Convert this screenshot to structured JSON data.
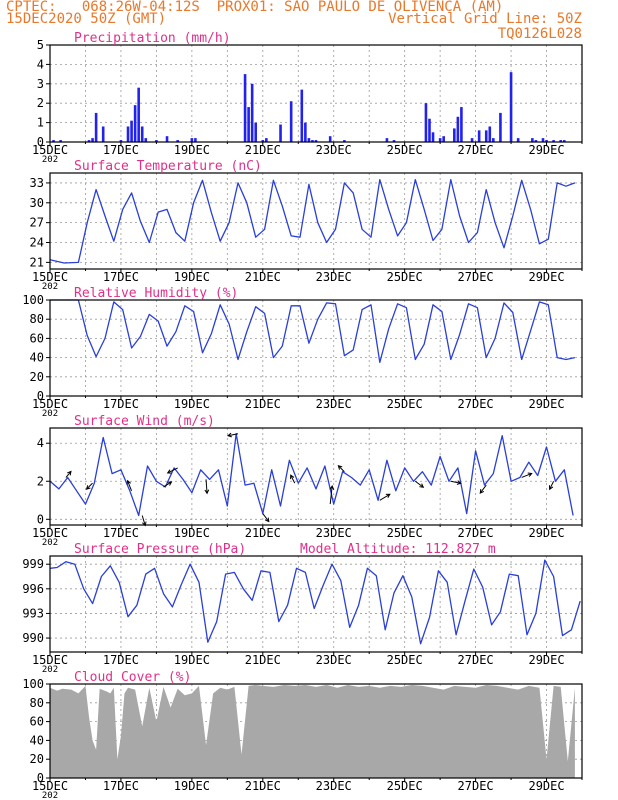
{
  "header": {
    "line1": "CPTEC:   068:26W-04:12S  PROX01: SAO PAULO DE OLIVENCA (AM)",
    "line2": "15DEC2020 50Z (GMT)",
    "right1": "Vertical Grid Line: 50Z",
    "right2": "TQ0126L028"
  },
  "colors": {
    "header": "#e8782a",
    "title": "#e0308a",
    "line": "#2a3fd8",
    "cloud": "#a8a8a8",
    "grid": "#9a9a9a"
  },
  "x_ticks": [
    "15DEC",
    "17DEC",
    "19DEC",
    "21DEC",
    "23DEC",
    "25DEC",
    "27DEC",
    "29DEC"
  ],
  "year_cut": "202",
  "chart_data": [
    {
      "type": "bar",
      "title": "Precipitation (mm/h)",
      "ylim": [
        0,
        5
      ],
      "yticks": [
        "0",
        "1",
        "2",
        "3",
        "4",
        "5"
      ],
      "x_days": [
        0.1,
        0.3,
        1.1,
        1.2,
        1.3,
        1.5,
        2.0,
        2.2,
        2.3,
        2.4,
        2.5,
        2.6,
        2.7,
        3.0,
        3.3,
        3.6,
        4.0,
        4.1,
        5.5,
        5.6,
        5.7,
        5.8,
        6.0,
        6.1,
        6.5,
        6.8,
        7.1,
        7.2,
        7.3,
        7.4,
        7.5,
        7.9,
        8.3,
        9.5,
        9.7,
        10.6,
        10.7,
        10.8,
        11.0,
        11.1,
        11.4,
        11.5,
        11.6,
        11.9,
        12.1,
        12.3,
        12.4,
        12.5,
        12.7,
        13.0,
        13.2,
        13.6,
        13.7,
        13.9,
        14.0,
        14.2,
        14.4,
        14.5
      ],
      "values": [
        0.1,
        0.1,
        0.1,
        0.2,
        1.5,
        0.8,
        0.1,
        0.8,
        1.1,
        1.9,
        2.8,
        0.8,
        0.2,
        0.1,
        0.3,
        0.1,
        0.2,
        0.2,
        3.5,
        1.8,
        3.0,
        1.0,
        0.1,
        0.2,
        0.9,
        2.1,
        2.7,
        1.0,
        0.2,
        0.1,
        0.1,
        0.3,
        0.1,
        0.2,
        0.1,
        2.0,
        1.2,
        0.5,
        0.2,
        0.3,
        0.7,
        1.3,
        1.8,
        0.2,
        0.6,
        0.6,
        0.8,
        0.2,
        1.5,
        3.6,
        0.2,
        0.2,
        0.1,
        0.2,
        0.1,
        0.1,
        0.1,
        0.1
      ]
    },
    {
      "type": "line",
      "title": "Surface Temperature (nC)",
      "ylim": [
        20,
        34.5
      ],
      "yticks": [
        "21",
        "24",
        "27",
        "30",
        "33"
      ],
      "x_days": [
        0,
        0.4,
        0.8,
        1.05,
        1.3,
        1.55,
        1.8,
        2.05,
        2.3,
        2.55,
        2.8,
        3.05,
        3.3,
        3.55,
        3.8,
        4.05,
        4.3,
        4.55,
        4.8,
        5.05,
        5.3,
        5.55,
        5.8,
        6.05,
        6.3,
        6.55,
        6.8,
        7.05,
        7.3,
        7.55,
        7.8,
        8.05,
        8.3,
        8.55,
        8.8,
        9.05,
        9.3,
        9.55,
        9.8,
        10.05,
        10.3,
        10.55,
        10.8,
        11.05,
        11.3,
        11.55,
        11.8,
        12.05,
        12.3,
        12.55,
        12.8,
        13.05,
        13.3,
        13.55,
        13.8,
        14.05,
        14.3,
        14.55,
        14.8
      ],
      "values": [
        21.4,
        20.9,
        21.0,
        27.0,
        32.0,
        28.0,
        24.2,
        29.0,
        31.5,
        27.2,
        24.0,
        28.6,
        29.0,
        25.5,
        24.2,
        30.0,
        33.4,
        28.5,
        24.2,
        27.0,
        33.0,
        30.0,
        24.8,
        26.0,
        33.4,
        29.5,
        25.0,
        24.8,
        32.8,
        27.0,
        24.0,
        26.0,
        33.0,
        31.5,
        26.0,
        24.8,
        33.5,
        29.0,
        25.0,
        27.0,
        33.5,
        29.0,
        24.3,
        26.0,
        33.5,
        28.0,
        24.0,
        25.5,
        32.0,
        27.0,
        23.2,
        28.0,
        33.4,
        29.0,
        23.8,
        24.5,
        33.0,
        32.5,
        33.0
      ]
    },
    {
      "type": "line",
      "title": "Relative Humidity (%)",
      "ylim": [
        0,
        100
      ],
      "yticks": [
        "0",
        "20",
        "40",
        "60",
        "80",
        "100"
      ],
      "x_days": [
        0,
        0.4,
        0.8,
        1.05,
        1.3,
        1.55,
        1.8,
        2.05,
        2.3,
        2.55,
        2.8,
        3.05,
        3.3,
        3.55,
        3.8,
        4.05,
        4.3,
        4.55,
        4.8,
        5.05,
        5.3,
        5.55,
        5.8,
        6.05,
        6.3,
        6.55,
        6.8,
        7.05,
        7.3,
        7.55,
        7.8,
        8.05,
        8.3,
        8.55,
        8.8,
        9.05,
        9.3,
        9.55,
        9.8,
        10.05,
        10.3,
        10.55,
        10.8,
        11.05,
        11.3,
        11.55,
        11.8,
        12.05,
        12.3,
        12.55,
        12.8,
        13.05,
        13.3,
        13.55,
        13.8,
        14.05,
        14.3,
        14.55,
        14.8
      ],
      "values": [
        100,
        100,
        100,
        63,
        41,
        60,
        98,
        90,
        50,
        62,
        85,
        78,
        52,
        67,
        94,
        88,
        45,
        65,
        95,
        75,
        38,
        67,
        93,
        86,
        40,
        52,
        94,
        94,
        55,
        80,
        97,
        96,
        42,
        48,
        90,
        95,
        35,
        70,
        96,
        92,
        38,
        54,
        95,
        88,
        38,
        64,
        96,
        92,
        40,
        60,
        97,
        87,
        38,
        68,
        98,
        95,
        40,
        38,
        40
      ]
    },
    {
      "type": "line",
      "title": "Surface Wind (m/s)",
      "ylim": [
        -0.3,
        4.8
      ],
      "yticks": [
        "0",
        "2",
        "4"
      ],
      "x_days": [
        0,
        0.25,
        0.5,
        0.75,
        1.0,
        1.25,
        1.5,
        1.75,
        2.0,
        2.25,
        2.5,
        2.75,
        3.0,
        3.25,
        3.5,
        3.75,
        4.0,
        4.25,
        4.5,
        4.75,
        5.0,
        5.25,
        5.5,
        5.75,
        6.0,
        6.25,
        6.5,
        6.75,
        7.0,
        7.25,
        7.5,
        7.75,
        8.0,
        8.25,
        8.5,
        8.75,
        9.0,
        9.25,
        9.5,
        9.75,
        10.0,
        10.25,
        10.5,
        10.75,
        11.0,
        11.25,
        11.5,
        11.75,
        12.0,
        12.25,
        12.5,
        12.75,
        13.0,
        13.25,
        13.5,
        13.75,
        14.0,
        14.25,
        14.5,
        14.75
      ],
      "values": [
        2.0,
        1.6,
        2.2,
        1.5,
        0.8,
        1.9,
        4.3,
        2.4,
        2.6,
        1.5,
        0.2,
        2.8,
        2.0,
        1.7,
        2.7,
        2.1,
        1.4,
        2.6,
        2.1,
        2.6,
        0.7,
        4.5,
        1.8,
        1.9,
        0.3,
        2.6,
        0.7,
        3.1,
        1.9,
        2.7,
        1.6,
        2.8,
        0.8,
        2.5,
        2.2,
        1.8,
        2.6,
        1.0,
        3.1,
        1.5,
        2.7,
        2.0,
        2.5,
        1.8,
        3.3,
        2.0,
        2.7,
        0.3,
        3.6,
        1.8,
        2.4,
        4.4,
        2.0,
        2.2,
        3.0,
        2.3,
        3.8,
        2.0,
        2.6,
        0.2
      ],
      "arrows": [
        {
          "day": 0.45,
          "dx": 5,
          "dy": -6
        },
        {
          "day": 1.2,
          "dx": -6,
          "dy": 6
        },
        {
          "day": 2.3,
          "dx": -4,
          "dy": -10
        },
        {
          "day": 2.6,
          "dx": 3,
          "dy": 10
        },
        {
          "day": 3.2,
          "dx": 8,
          "dy": -5
        },
        {
          "day": 3.6,
          "dx": -10,
          "dy": 5
        },
        {
          "day": 4.4,
          "dx": 1,
          "dy": 14
        },
        {
          "day": 5.3,
          "dx": -10,
          "dy": 2
        },
        {
          "day": 6.0,
          "dx": 6,
          "dy": 8
        },
        {
          "day": 6.9,
          "dx": -4,
          "dy": -8
        },
        {
          "day": 7.9,
          "dx": 2,
          "dy": -18
        },
        {
          "day": 8.3,
          "dx": -6,
          "dy": -6
        },
        {
          "day": 9.3,
          "dx": 10,
          "dy": -6
        },
        {
          "day": 10.3,
          "dx": 8,
          "dy": 6
        },
        {
          "day": 11.3,
          "dx": 10,
          "dy": 2
        },
        {
          "day": 12.3,
          "dx": -6,
          "dy": 8
        },
        {
          "day": 13.3,
          "dx": 10,
          "dy": -4
        },
        {
          "day": 14.2,
          "dx": -4,
          "dy": 8
        }
      ]
    },
    {
      "type": "line",
      "title": "Surface Pressure (hPa)",
      "annotation": "Model Altitude: 112.827 m",
      "ylim": [
        988.3,
        1000
      ],
      "yticks": [
        "990",
        "993",
        "996",
        "999"
      ],
      "x_days": [
        0,
        0.2,
        0.45,
        0.7,
        0.95,
        1.2,
        1.45,
        1.7,
        1.95,
        2.2,
        2.45,
        2.7,
        2.95,
        3.2,
        3.45,
        3.7,
        3.95,
        4.2,
        4.45,
        4.7,
        4.95,
        5.2,
        5.45,
        5.7,
        5.95,
        6.2,
        6.45,
        6.7,
        6.95,
        7.2,
        7.45,
        7.7,
        7.95,
        8.2,
        8.45,
        8.7,
        8.95,
        9.2,
        9.45,
        9.7,
        9.95,
        10.2,
        10.45,
        10.7,
        10.95,
        11.2,
        11.45,
        11.7,
        11.95,
        12.2,
        12.45,
        12.7,
        12.95,
        13.2,
        13.45,
        13.7,
        13.95,
        14.2,
        14.45,
        14.7,
        14.95
      ],
      "values": [
        998.5,
        998.6,
        999.3,
        999.0,
        996.0,
        994.2,
        997.5,
        998.8,
        996.8,
        992.6,
        994.0,
        997.8,
        998.5,
        995.4,
        993.8,
        996.5,
        999.0,
        996.8,
        989.5,
        992.0,
        997.8,
        998.0,
        996.0,
        994.6,
        998.2,
        998.0,
        992.0,
        994.0,
        998.5,
        998.0,
        993.6,
        996.4,
        999.0,
        997.0,
        991.3,
        994.0,
        998.5,
        997.6,
        991.0,
        995.5,
        997.6,
        995.0,
        989.3,
        992.5,
        998.2,
        996.8,
        990.4,
        994.5,
        998.4,
        996.2,
        991.6,
        993.2,
        997.8,
        997.6,
        990.4,
        993.0,
        999.5,
        997.5,
        990.3,
        991.0,
        994.5
      ]
    },
    {
      "type": "area",
      "title": "Cloud Cover (%)",
      "ylim": [
        0,
        100
      ],
      "yticks": [
        "0",
        "20",
        "40",
        "60",
        "80",
        "100"
      ],
      "x_days": [
        0,
        0.2,
        0.35,
        0.6,
        0.8,
        1.0,
        1.1,
        1.2,
        1.3,
        1.4,
        1.6,
        1.7,
        1.8,
        1.9,
        2.0,
        2.1,
        2.2,
        2.4,
        2.6,
        2.8,
        3.0,
        3.2,
        3.4,
        3.6,
        3.8,
        4.0,
        4.2,
        4.4,
        4.6,
        4.8,
        5.0,
        5.2,
        5.4,
        5.6,
        5.8,
        6.0,
        6.3,
        6.6,
        6.9,
        7.2,
        7.5,
        7.8,
        8.1,
        8.4,
        8.7,
        9.0,
        9.3,
        9.6,
        9.9,
        10.2,
        10.5,
        10.8,
        11.1,
        11.4,
        11.7,
        12.0,
        12.3,
        12.6,
        12.9,
        13.2,
        13.5,
        13.8,
        14.0,
        14.2,
        14.4,
        14.6,
        14.8
      ],
      "values": [
        96,
        93,
        95,
        94,
        90,
        98,
        65,
        40,
        30,
        95,
        92,
        90,
        96,
        20,
        45,
        90,
        96,
        94,
        55,
        96,
        60,
        97,
        75,
        95,
        88,
        90,
        98,
        35,
        90,
        96,
        94,
        97,
        25,
        98,
        99,
        98,
        97,
        99,
        98,
        99,
        97,
        99,
        96,
        99,
        97,
        98,
        96,
        98,
        97,
        99,
        98,
        96,
        94,
        98,
        97,
        96,
        99,
        98,
        96,
        94,
        98,
        96,
        20,
        98,
        97,
        18,
        96
      ]
    }
  ]
}
